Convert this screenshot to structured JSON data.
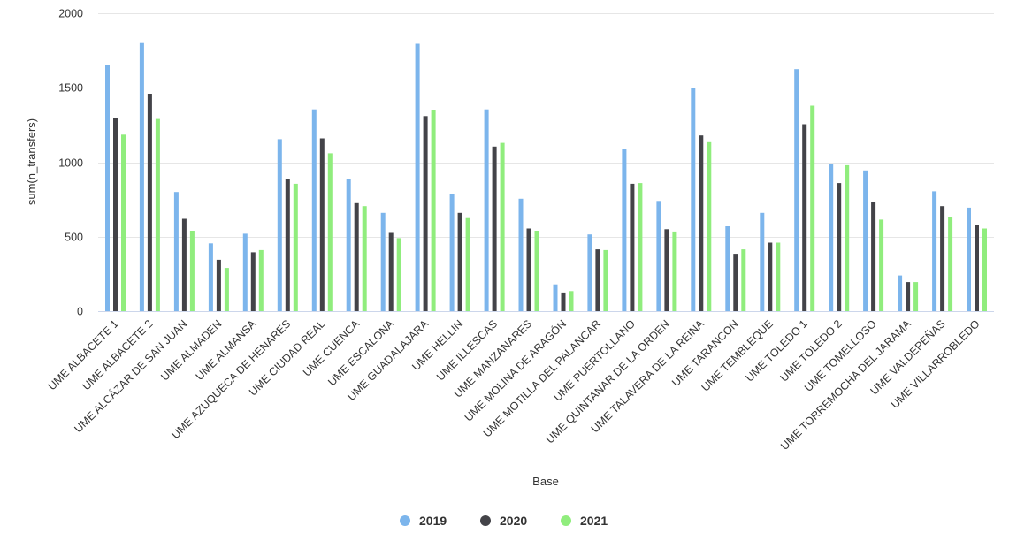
{
  "chart_data": {
    "type": "bar",
    "xlabel": "Base",
    "ylabel": "sum(n_transfers)",
    "ylim": [
      0,
      2000
    ],
    "yticks": [
      0,
      500,
      1000,
      1500,
      2000
    ],
    "grid": true,
    "legend_position": "bottom-center",
    "categories": [
      "UME ALBACETE 1",
      "UME ALBACETE 2",
      "UME ALCÁZAR DE SAN JUAN",
      "UME ALMADEN",
      "UME ALMANSA",
      "UME AZUQUECA DE HENARES",
      "UME CIUDAD REAL",
      "UME CUENCA",
      "UME ESCALONA",
      "UME GUADALAJARA",
      "UME HELLIN",
      "UME ILLESCAS",
      "UME MANZANARES",
      "UME MOLINA DE ARAGÓN",
      "UME MOTILLA DEL PALANCAR",
      "UME PUERTOLLANO",
      "UME QUINTANAR DE LA ORDEN",
      "UME TALAVERA DE LA REINA",
      "UME TARANCON",
      "UME TEMBLEQUE",
      "UME TOLEDO 1",
      "UME TOLEDO 2",
      "UME TOMELLOSO",
      "UME TORREMOCHA DEL JARAMA",
      "UME VALDEPEÑAS",
      "UME VILLARROBLEDO"
    ],
    "series": [
      {
        "name": "2019",
        "color": "#7cb5ec",
        "values": [
          1655,
          1800,
          800,
          455,
          520,
          1155,
          1355,
          890,
          660,
          1795,
          785,
          1355,
          755,
          180,
          515,
          1090,
          740,
          1500,
          570,
          660,
          1625,
          985,
          945,
          240,
          805,
          695
        ]
      },
      {
        "name": "2020",
        "color": "#434348",
        "values": [
          1295,
          1460,
          620,
          345,
          395,
          890,
          1160,
          725,
          525,
          1310,
          660,
          1105,
          555,
          125,
          415,
          855,
          550,
          1180,
          385,
          460,
          1255,
          860,
          735,
          195,
          705,
          580
        ]
      },
      {
        "name": "2021",
        "color": "#90ed7d",
        "values": [
          1185,
          1290,
          540,
          290,
          410,
          855,
          1060,
          705,
          490,
          1350,
          625,
          1130,
          540,
          135,
          410,
          860,
          535,
          1135,
          415,
          460,
          1380,
          980,
          615,
          195,
          630,
          555
        ]
      }
    ]
  }
}
